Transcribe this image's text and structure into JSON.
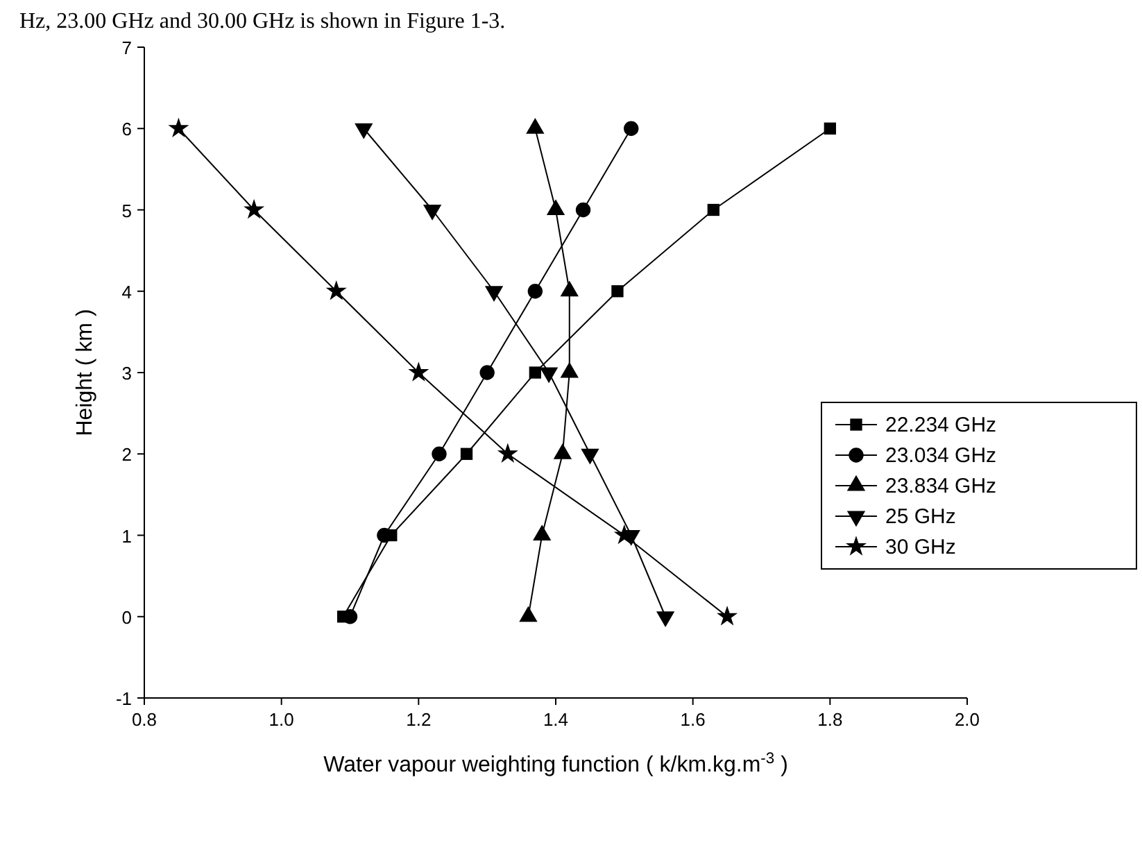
{
  "chart_data": {
    "type": "line",
    "xlabel": "Water vapour weighting function ( k/km.kg.m$^{-3}$ )",
    "ylabel": "Height ( km )",
    "annotations": [
      "Hz, 23.00 GHz and 30.00 GHz is shown in Figure 1-3."
    ],
    "xlim": [
      0.8,
      2.0
    ],
    "xticks": [
      {
        "value": 0.8,
        "label": "0.8"
      },
      {
        "value": 1.0,
        "label": "1.0"
      },
      {
        "value": 1.2,
        "label": "1.2"
      },
      {
        "value": 1.4,
        "label": "1.4"
      },
      {
        "value": 1.6,
        "label": "1.6"
      },
      {
        "value": 1.8,
        "label": "1.8"
      },
      {
        "value": 2.0,
        "label": "2.0"
      }
    ],
    "ylim": [
      -1,
      7
    ],
    "yticks": [
      -1,
      0,
      1,
      2,
      3,
      4,
      5,
      6,
      7
    ],
    "grid": false,
    "legend": "right",
    "series": [
      {
        "name": "22.234 GHz",
        "color": "#000000",
        "marker": "square",
        "x": [
          1.09,
          1.16,
          1.27,
          1.37,
          1.49,
          1.63,
          1.8
        ],
        "values": [
          0,
          1,
          2,
          3,
          4,
          5,
          6
        ]
      },
      {
        "name": "23.034 GHz",
        "color": "#000000",
        "marker": "circle",
        "x": [
          1.1,
          1.15,
          1.23,
          1.3,
          1.37,
          1.44,
          1.51
        ],
        "values": [
          0,
          1,
          2,
          3,
          4,
          5,
          6
        ]
      },
      {
        "name": "23.834 GHz",
        "color": "#000000",
        "marker": "triangle",
        "x": [
          1.36,
          1.38,
          1.41,
          1.42,
          1.42,
          1.4,
          1.37
        ],
        "values": [
          0,
          1,
          2,
          3,
          4,
          5,
          6
        ]
      },
      {
        "name": "25 GHz",
        "color": "#000000",
        "marker": "triangle-down",
        "x": [
          1.56,
          1.51,
          1.45,
          1.39,
          1.31,
          1.22,
          1.12
        ],
        "values": [
          0,
          1,
          2,
          3,
          4,
          5,
          6
        ]
      },
      {
        "name": "30 GHz",
        "color": "#000000",
        "marker": "star",
        "x": [
          1.65,
          1.5,
          1.33,
          1.2,
          1.08,
          0.96,
          0.85
        ],
        "values": [
          0,
          1,
          2,
          3,
          4,
          5,
          6
        ]
      }
    ]
  }
}
